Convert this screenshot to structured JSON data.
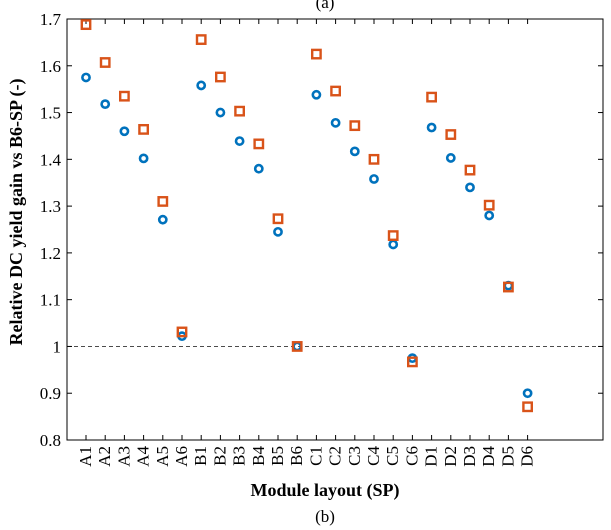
{
  "top_caption": "(a)",
  "bottom_caption": "(b)",
  "chart_data": {
    "type": "scatter",
    "title": "",
    "xlabel": "Module layout (SP)",
    "ylabel": "Relative DC yield gain vs B6-SP (-)",
    "categories": [
      "A1",
      "A2",
      "A3",
      "A4",
      "A5",
      "A6",
      "B1",
      "B2",
      "B3",
      "B4",
      "B5",
      "B6",
      "C1",
      "C2",
      "C3",
      "C4",
      "C5",
      "C6",
      "D1",
      "D2",
      "D3",
      "D4",
      "D5",
      "D6"
    ],
    "ylim": [
      0.8,
      1.7
    ],
    "yticks": [
      0.8,
      0.9,
      1,
      1.1,
      1.2,
      1.3,
      1.4,
      1.5,
      1.6,
      1.7
    ],
    "ytick_labels": [
      "0.8",
      "0.9",
      "1",
      "1.1",
      "1.2",
      "1.3",
      "1.4",
      "1.5",
      "1.6",
      "1.7"
    ],
    "reference_line": 1.0,
    "grid": false,
    "series": [
      {
        "marker": "circle",
        "color": "#0072BD",
        "values": [
          1.575,
          1.518,
          1.46,
          1.402,
          1.271,
          1.022,
          1.558,
          1.5,
          1.439,
          1.38,
          1.245,
          1.0,
          1.538,
          1.478,
          1.417,
          1.358,
          1.218,
          0.975,
          1.468,
          1.403,
          1.34,
          1.28,
          1.13,
          0.9
        ]
      },
      {
        "marker": "square",
        "color": "#D95319",
        "values": [
          1.688,
          1.607,
          1.535,
          1.464,
          1.31,
          1.031,
          1.656,
          1.576,
          1.503,
          1.433,
          1.273,
          1.0,
          1.625,
          1.546,
          1.472,
          1.4,
          1.237,
          0.967,
          1.533,
          1.453,
          1.377,
          1.302,
          1.127,
          0.871
        ]
      }
    ]
  }
}
